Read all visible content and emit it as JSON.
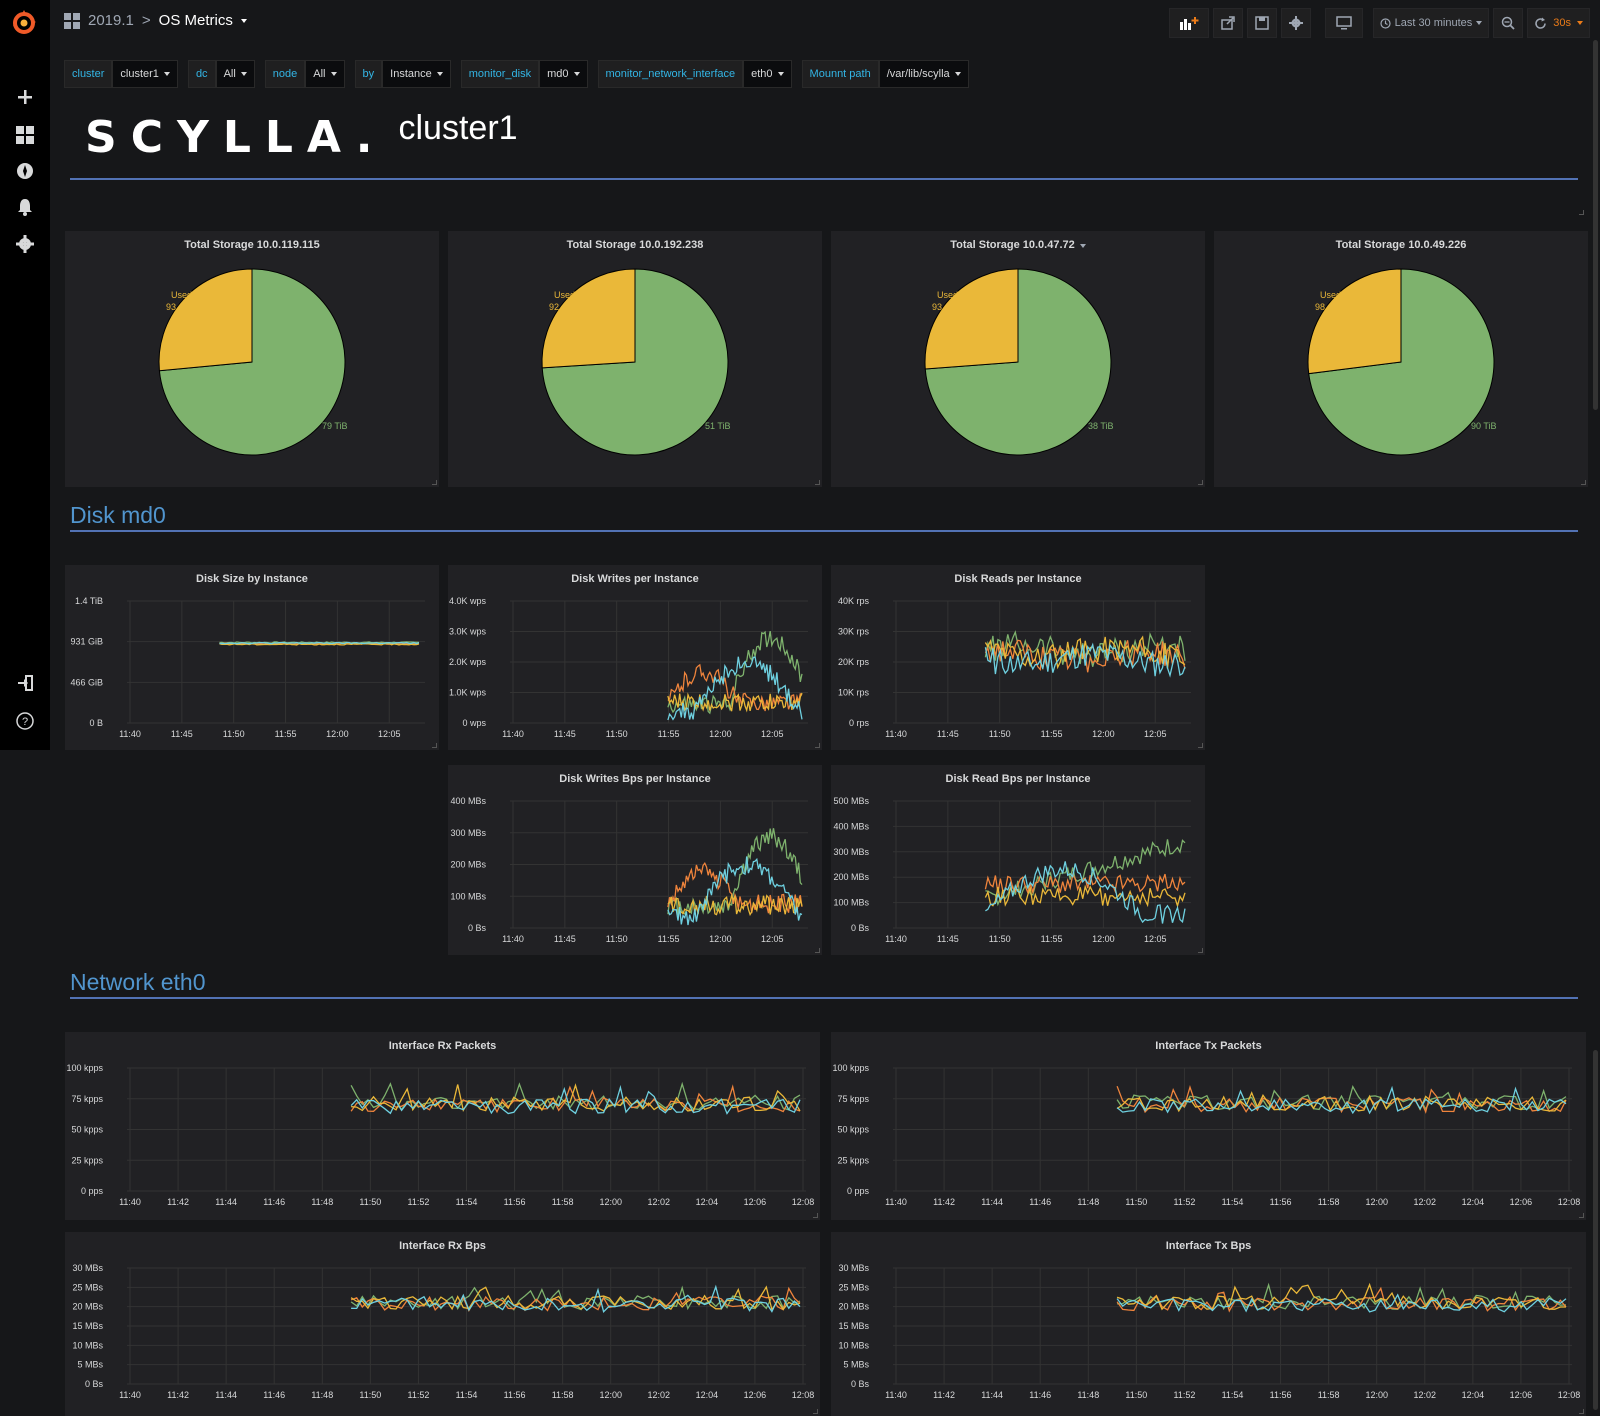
{
  "header": {
    "folder": "2019.1",
    "separator": ">",
    "title": "OS Metrics"
  },
  "toolbar": {
    "time_range": "Last 30 minutes",
    "refresh": "30s"
  },
  "variables": [
    {
      "label": "cluster",
      "value": "cluster1"
    },
    {
      "label": "dc",
      "value": "All"
    },
    {
      "label": "node",
      "value": "All"
    },
    {
      "label": "by",
      "value": "Instance"
    },
    {
      "label": "monitor_disk",
      "value": "md0"
    },
    {
      "label": "monitor_network_interface",
      "value": "eth0"
    },
    {
      "label": "Mounnt path",
      "value": "/var/lib/scylla"
    }
  ],
  "brand": {
    "wordmark": "SCYLLA.",
    "cluster": "cluster1"
  },
  "rows": {
    "disk": "Disk md0",
    "network": "Network eth0"
  },
  "colors": {
    "used": "#eab839",
    "free": "#7eb26d",
    "series_green": "#7eb26d",
    "series_orange": "#ef843c",
    "series_yellow": "#eab839",
    "series_blue": "#6ed0e0",
    "accent_line": "#5272b4"
  },
  "pie_panels": [
    {
      "title": "Total Storage 10.0.119.115",
      "used_label": "Used",
      "used_partial": "93",
      "free_partial": "79 TiB"
    },
    {
      "title": "Total Storage 10.0.192.238",
      "used_label": "Used",
      "used_partial": "92",
      "free_partial": "51 TiB"
    },
    {
      "title": "Total Storage 10.0.47.72",
      "used_label": "Used",
      "used_partial": "93",
      "free_partial": "38 TiB"
    },
    {
      "title": "Total Storage 10.0.49.226",
      "used_label": "Used",
      "used_partial": "98",
      "free_partial": "90 TiB"
    }
  ],
  "chart_data": [
    {
      "type": "pie",
      "title": "Total Storage 10.0.119.115",
      "slices": [
        {
          "name": "Used",
          "value": 0.265
        },
        {
          "name": "Free",
          "value": 0.735
        }
      ]
    },
    {
      "type": "pie",
      "title": "Total Storage 10.0.192.238",
      "slices": [
        {
          "name": "Used",
          "value": 0.26
        },
        {
          "name": "Free",
          "value": 0.74
        }
      ]
    },
    {
      "type": "pie",
      "title": "Total Storage 10.0.47.72",
      "slices": [
        {
          "name": "Used",
          "value": 0.262
        },
        {
          "name": "Free",
          "value": 0.738
        }
      ]
    },
    {
      "type": "pie",
      "title": "Total Storage 10.0.49.226",
      "slices": [
        {
          "name": "Used",
          "value": 0.27
        },
        {
          "name": "Free",
          "value": 0.73
        }
      ]
    },
    {
      "type": "line",
      "title": "Disk Size by Instance",
      "yticks": [
        "1.4 TiB",
        "931 GiB",
        "466 GiB",
        "0 B"
      ],
      "xticks": [
        "11:40",
        "11:45",
        "11:50",
        "11:55",
        "12:00",
        "12:05"
      ],
      "ylim": [
        0,
        1.4
      ],
      "profile": "flat",
      "level": [
        0.66,
        0.65,
        0.645,
        0.655
      ],
      "start": 0.31
    },
    {
      "type": "line",
      "title": "Disk Writes per Instance",
      "yticks": [
        "4.0K wps",
        "3.0K wps",
        "2.0K wps",
        "1.0K wps",
        "0 wps"
      ],
      "xticks": [
        "11:40",
        "11:45",
        "11:50",
        "11:55",
        "12:00",
        "12:05"
      ],
      "ylim": [
        0,
        4000
      ],
      "profile": "bursty",
      "level": [
        0.25,
        0.3,
        0.18,
        0.1
      ],
      "start": 0.53
    },
    {
      "type": "line",
      "title": "Disk Reads per Instance",
      "yticks": [
        "40K rps",
        "30K rps",
        "20K rps",
        "10K rps",
        "0 rps"
      ],
      "xticks": [
        "11:40",
        "11:45",
        "11:50",
        "11:55",
        "12:00",
        "12:05"
      ],
      "ylim": [
        0,
        40000
      ],
      "profile": "noisy",
      "level": [
        0.6,
        0.55,
        0.58,
        0.52
      ],
      "start": 0.31
    },
    {
      "type": "line",
      "title": "Disk Writes Bps per Instance",
      "yticks": [
        "400 MBs",
        "300 MBs",
        "200 MBs",
        "100 MBs",
        "0 Bs"
      ],
      "xticks": [
        "11:40",
        "11:45",
        "11:50",
        "11:55",
        "12:00",
        "12:05"
      ],
      "ylim": [
        0,
        400
      ],
      "profile": "bursty",
      "level": [
        0.3,
        0.35,
        0.2,
        0.12
      ],
      "start": 0.53
    },
    {
      "type": "line",
      "title": "Disk Read Bps per Instance",
      "yticks": [
        "500 MBs",
        "400 MBs",
        "300 MBs",
        "200 MBs",
        "100 MBs",
        "0 Bs"
      ],
      "xticks": [
        "11:40",
        "11:45",
        "11:50",
        "11:55",
        "12:00",
        "12:05"
      ],
      "ylim": [
        0,
        500
      ],
      "profile": "bursty2",
      "level": [
        0.45,
        0.5,
        0.3,
        0.22
      ],
      "start": 0.31
    },
    {
      "type": "line",
      "title": "Interface Rx Packets",
      "yticks": [
        "100 kpps",
        "75 kpps",
        "50 kpps",
        "25 kpps",
        "0 pps"
      ],
      "xticks": [
        "11:40",
        "11:42",
        "11:44",
        "11:46",
        "11:48",
        "11:50",
        "11:52",
        "11:54",
        "11:56",
        "11:58",
        "12:00",
        "12:02",
        "12:04",
        "12:06",
        "12:08"
      ],
      "ylim": [
        0,
        100
      ],
      "profile": "steady",
      "level": [
        0.72,
        0.7,
        0.71,
        0.69
      ],
      "start": 0.33
    },
    {
      "type": "line",
      "title": "Interface Tx Packets",
      "yticks": [
        "100 kpps",
        "75 kpps",
        "50 kpps",
        "25 kpps",
        "0 pps"
      ],
      "xticks": [
        "11:40",
        "11:42",
        "11:44",
        "11:46",
        "11:48",
        "11:50",
        "11:52",
        "11:54",
        "11:56",
        "11:58",
        "12:00",
        "12:02",
        "12:04",
        "12:06",
        "12:08"
      ],
      "ylim": [
        0,
        100
      ],
      "profile": "steady",
      "level": [
        0.72,
        0.7,
        0.71,
        0.69
      ],
      "start": 0.33
    },
    {
      "type": "line",
      "title": "Interface Rx Bps",
      "yticks": [
        "30 MBs",
        "25 MBs",
        "20 MBs",
        "15 MBs",
        "10 MBs",
        "5 MBs",
        "0 Bs"
      ],
      "xticks": [
        "11:40",
        "11:42",
        "11:44",
        "11:46",
        "11:48",
        "11:50",
        "11:52",
        "11:54",
        "11:56",
        "11:58",
        "12:00",
        "12:02",
        "12:04",
        "12:06",
        "12:08"
      ],
      "ylim": [
        0,
        30
      ],
      "profile": "steady",
      "level": [
        0.7,
        0.69,
        0.7,
        0.68
      ],
      "start": 0.33
    },
    {
      "type": "line",
      "title": "Interface Tx Bps",
      "yticks": [
        "30 MBs",
        "25 MBs",
        "20 MBs",
        "15 MBs",
        "10 MBs",
        "5 MBs",
        "0 Bs"
      ],
      "xticks": [
        "11:40",
        "11:42",
        "11:44",
        "11:46",
        "11:48",
        "11:50",
        "11:52",
        "11:54",
        "11:56",
        "11:58",
        "12:00",
        "12:02",
        "12:04",
        "12:06",
        "12:08"
      ],
      "ylim": [
        0,
        30
      ],
      "profile": "steady",
      "level": [
        0.7,
        0.69,
        0.7,
        0.68
      ],
      "start": 0.33
    }
  ]
}
